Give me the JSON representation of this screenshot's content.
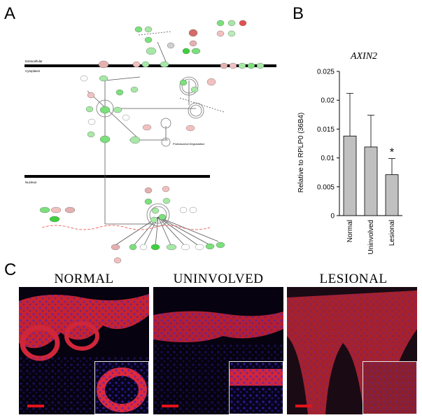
{
  "panels": {
    "a": "A",
    "b": "B",
    "c": "C"
  },
  "pathway": {
    "extracellular_label": "Extracellular",
    "cytoplasm_label": "Cytoplasm",
    "nucleus_label": "Nucleus",
    "degradation_label": "Proteasomal Degradation",
    "legend_colors": [
      "#7be07b",
      "#a6e8a6",
      "#e05050",
      "#f2c0c0",
      "#b8ecb8"
    ]
  },
  "chart_data": {
    "type": "bar",
    "title": "AXIN2",
    "ylabel": "Relative to RPLP0 (36B4)",
    "categories": [
      "Normal",
      "Uninvolved",
      "Lesional"
    ],
    "values": [
      0.0138,
      0.0119,
      0.0071
    ],
    "errors": [
      0.0074,
      0.0055,
      0.0028
    ],
    "ylim": [
      0,
      0.025
    ],
    "yticks": [
      "0",
      "0.005",
      "0.01",
      "0.015",
      "0.02",
      "0.025"
    ],
    "annotations": [
      {
        "category": "Lesional",
        "text": "*"
      }
    ],
    "bar_color": "#c0c0c0"
  },
  "micrographs": [
    {
      "title": "NORMAL"
    },
    {
      "title": "UNINVOLVED"
    },
    {
      "title": "LESIONAL"
    }
  ]
}
